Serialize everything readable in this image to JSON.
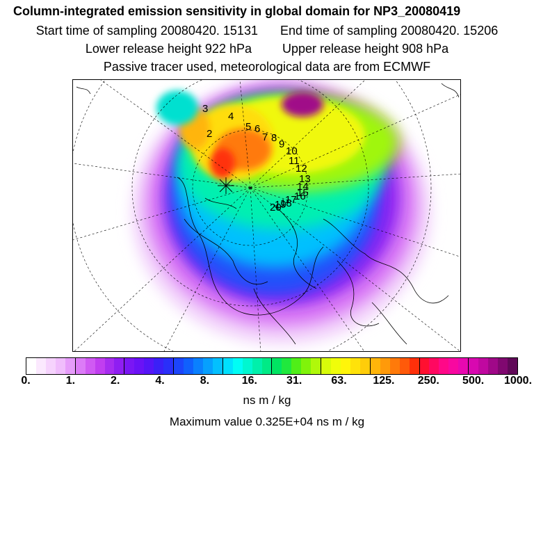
{
  "title": "Column-integrated emission sensitivity in global domain for NP3_20080419",
  "sampling": {
    "start": "Start time of sampling 20080420. 15131",
    "end": "End time of sampling 20080420. 15206"
  },
  "release": {
    "lower": "Lower release height  922 hPa",
    "upper": "Upper release height  908 hPa"
  },
  "tracer_note": "Passive tracer used, meteorological data are from ECMWF",
  "colorbar": {
    "ticks": [
      "0.",
      "1.",
      "2.",
      "4.",
      "8.",
      "16.",
      "31.",
      "63.",
      "125.",
      "250.",
      "500.",
      "1000."
    ],
    "colors": [
      "#ffffff",
      "#fbe9fe",
      "#f6d3fd",
      "#f0bdfc",
      "#e69cfa",
      "#dc7bf7",
      "#d05af3",
      "#c13ef0",
      "#a72cf0",
      "#8f1ef2",
      "#7a16f4",
      "#6a12f6",
      "#5515f7",
      "#3b20f7",
      "#2a2ff9",
      "#1c45fb",
      "#1060fd",
      "#0a80fe",
      "#06a0fe",
      "#03c0fe",
      "#00e0fe",
      "#00fdf5",
      "#00f7d0",
      "#00f0ab",
      "#00ea86",
      "#00e462",
      "#20e83d",
      "#50ee18",
      "#80f30a",
      "#b0f80a",
      "#d8fb0a",
      "#f0fd0a",
      "#fff50a",
      "#ffe20a",
      "#ffcd0a",
      "#ffb50a",
      "#ff9a0a",
      "#ff7a0a",
      "#ff5a0a",
      "#ff300a",
      "#ff1030",
      "#ff0860",
      "#ff0888",
      "#f808a0",
      "#e808b0",
      "#d808b0",
      "#c008a0",
      "#a00888",
      "#800870",
      "#600858"
    ],
    "units": "ns m / kg"
  },
  "max_value": "Maximum value  0.325E+04 ns m / kg",
  "trajectory_labels": [
    "2",
    "3",
    "4",
    "5",
    "6",
    "7",
    "8",
    "9",
    "10",
    "11",
    "12",
    "13",
    "14",
    "15",
    "16",
    "17",
    "18",
    "19",
    "20"
  ]
}
